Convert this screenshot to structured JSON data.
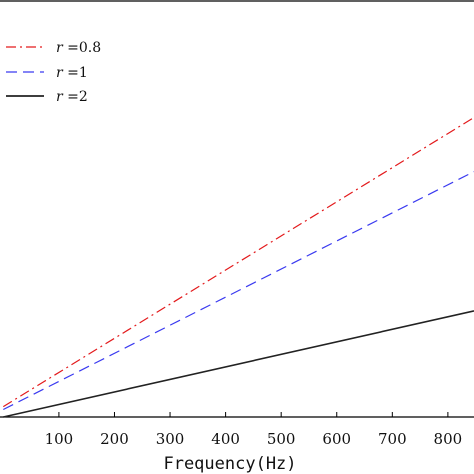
{
  "chart_data": {
    "type": "line",
    "title": "",
    "xlabel": "Frequency(Hz)",
    "ylabel": "",
    "xlim": [
      -6,
      847
    ],
    "ylim": [
      0,
      1
    ],
    "x_ticks": [
      100,
      200,
      300,
      400,
      500,
      600,
      700,
      800
    ],
    "x_tick_labels": [
      "100",
      "200",
      "300",
      "400",
      "500",
      "600",
      "700",
      "800"
    ],
    "grid": false,
    "legend_position": "top-left",
    "legend": [
      {
        "var": "r",
        "eq": " =",
        "value": "0.8"
      },
      {
        "var": "r",
        "eq": " =",
        "value": "1"
      },
      {
        "var": "r",
        "eq": " =",
        "value": "2"
      }
    ],
    "series": [
      {
        "name": "r = 0.8",
        "color": "#e31a1c",
        "dash": "dashdot",
        "x": [
          0,
          847
        ],
        "y": [
          0.025,
          0.72
        ]
      },
      {
        "name": "r = 1",
        "color": "#3a3af0",
        "dash": "dashed",
        "x": [
          0,
          847
        ],
        "y": [
          0.018,
          0.59
        ]
      },
      {
        "name": "r = 2",
        "color": "#222222",
        "dash": "solid",
        "x": [
          0,
          847
        ],
        "y": [
          0.0,
          0.255
        ]
      }
    ]
  }
}
